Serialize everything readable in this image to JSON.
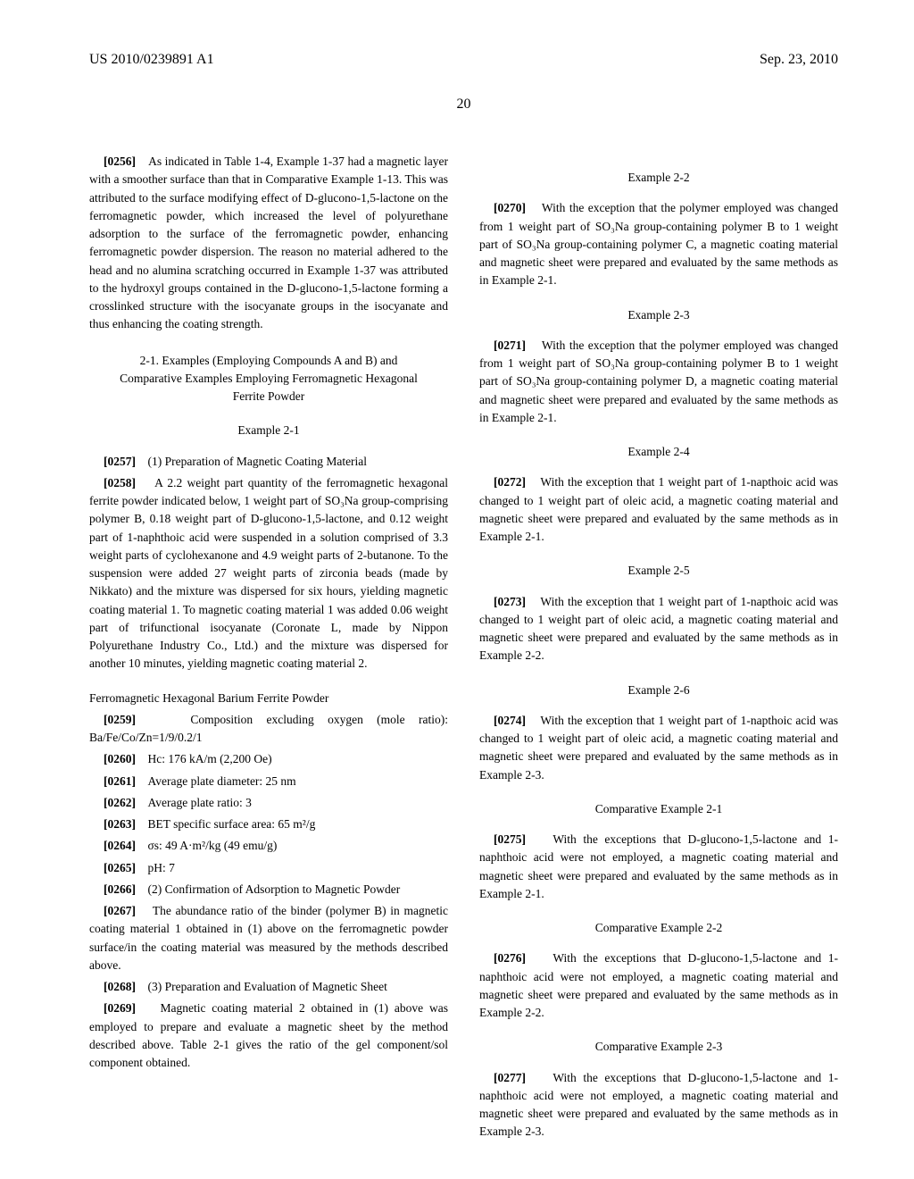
{
  "header": {
    "doc_number": "US 2010/0239891 A1",
    "date": "Sep. 23, 2010"
  },
  "page_number": "20",
  "left_column": {
    "para1": {
      "num": "[0256]",
      "text": "As indicated in Table 1-4, Example 1-37 had a magnetic layer with a smoother surface than that in Comparative Example 1-13. This was attributed to the surface modifying effect of D-glucono-1,5-lactone on the ferromagnetic powder, which increased the level of polyurethane adsorption to the surface of the ferromagnetic powder, enhancing ferromagnetic powder dispersion. The reason no material adhered to the head and no alumina scratching occurred in Example 1-37 was attributed to the hydroxyl groups contained in the D-glucono-1,5-lactone forming a crosslinked structure with the isocyanate groups in the isocyanate and thus enhancing the coating strength."
    },
    "section_header": "2-1. Examples (Employing Compounds A and B) and Comparative Examples Employing Ferromagnetic Hexagonal Ferrite Powder",
    "example_2_1": "Example 2-1",
    "para2": {
      "num": "[0257]",
      "text": "(1) Preparation of Magnetic Coating Material"
    },
    "para3": {
      "num": "[0258]",
      "text": "A 2.2 weight part quantity of the ferromagnetic hexagonal ferrite powder indicated below, 1 weight part of SO₃Na group-comprising polymer B, 0.18 weight part of D-glucono-1,5-lactone, and 0.12 weight part of 1-naphthoic acid were suspended in a solution comprised of 3.3 weight parts of cyclohexanone and 4.9 weight parts of 2-butanone. To the suspension were added 27 weight parts of zirconia beads (made by Nikkato) and the mixture was dispersed for six hours, yielding magnetic coating material 1. To magnetic coating material 1 was added 0.06 weight part of trifunctional isocyanate (Coronate L, made by Nippon Polyurethane Industry Co., Ltd.) and the mixture was dispersed for another 10 minutes, yielding magnetic coating material 2."
    },
    "subsection1": "Ferromagnetic Hexagonal Barium Ferrite Powder",
    "para4": {
      "num": "[0259]",
      "text": "Composition excluding oxygen (mole ratio): Ba/Fe/Co/Zn=1/9/0.2/1"
    },
    "para5": {
      "num": "[0260]",
      "text": "Hc: 176 kA/m (2,200 Oe)"
    },
    "para6": {
      "num": "[0261]",
      "text": "Average plate diameter: 25 nm"
    },
    "para7": {
      "num": "[0262]",
      "text": "Average plate ratio: 3"
    },
    "para8": {
      "num": "[0263]",
      "text": "BET specific surface area: 65 m²/g"
    },
    "para9": {
      "num": "[0264]",
      "text": "σs: 49 A·m²/kg (49 emu/g)"
    },
    "para10": {
      "num": "[0265]",
      "text": "pH: 7"
    },
    "para11": {
      "num": "[0266]",
      "text": "(2) Confirmation of Adsorption to Magnetic Powder"
    },
    "para12": {
      "num": "[0267]",
      "text": "The abundance ratio of the binder (polymer B) in magnetic coating material 1 obtained in (1) above on the ferromagnetic powder surface/in the coating material was measured by the methods described above."
    },
    "para13": {
      "num": "[0268]",
      "text": "(3) Preparation and Evaluation of Magnetic Sheet"
    },
    "para14": {
      "num": "[0269]",
      "text": "Magnetic coating material 2 obtained in (1) above was employed to prepare and evaluate a magnetic sheet by the method described above. Table 2-1 gives the ratio of the gel component/sol component obtained."
    }
  },
  "right_column": {
    "example_2_2": "Example 2-2",
    "para1": {
      "num": "[0270]",
      "text": "With the exception that the polymer employed was changed from 1 weight part of SO₃Na group-containing polymer B to 1 weight part of SO₃Na group-containing polymer C, a magnetic coating material and magnetic sheet were prepared and evaluated by the same methods as in Example 2-1."
    },
    "example_2_3": "Example 2-3",
    "para2": {
      "num": "[0271]",
      "text": "With the exception that the polymer employed was changed from 1 weight part of SO₃Na group-containing polymer B to 1 weight part of SO₃Na group-containing polymer D, a magnetic coating material and magnetic sheet were prepared and evaluated by the same methods as in Example 2-1."
    },
    "example_2_4": "Example 2-4",
    "para3": {
      "num": "[0272]",
      "text": "With the exception that 1 weight part of 1-napthoic acid was changed to 1 weight part of oleic acid, a magnetic coating material and magnetic sheet were prepared and evaluated by the same methods as in Example 2-1."
    },
    "example_2_5": "Example 2-5",
    "para4": {
      "num": "[0273]",
      "text": "With the exception that 1 weight part of 1-napthoic acid was changed to 1 weight part of oleic acid, a magnetic coating material and magnetic sheet were prepared and evaluated by the same methods as in Example 2-2."
    },
    "example_2_6": "Example 2-6",
    "para5": {
      "num": "[0274]",
      "text": "With the exception that 1 weight part of 1-napthoic acid was changed to 1 weight part of oleic acid, a magnetic coating material and magnetic sheet were prepared and evaluated by the same methods as in Example 2-3."
    },
    "comp_2_1": "Comparative Example 2-1",
    "para6": {
      "num": "[0275]",
      "text": "With the exceptions that D-glucono-1,5-lactone and 1-naphthoic acid were not employed, a magnetic coating material and magnetic sheet were prepared and evaluated by the same methods as in Example 2-1."
    },
    "comp_2_2": "Comparative Example 2-2",
    "para7": {
      "num": "[0276]",
      "text": "With the exceptions that D-glucono-1,5-lactone and 1-naphthoic acid were not employed, a magnetic coating material and magnetic sheet were prepared and evaluated by the same methods as in Example 2-2."
    },
    "comp_2_3": "Comparative Example 2-3",
    "para8": {
      "num": "[0277]",
      "text": "With the exceptions that D-glucono-1,5-lactone and 1-naphthoic acid were not employed, a magnetic coating material and magnetic sheet were prepared and evaluated by the same methods as in Example 2-3."
    }
  }
}
